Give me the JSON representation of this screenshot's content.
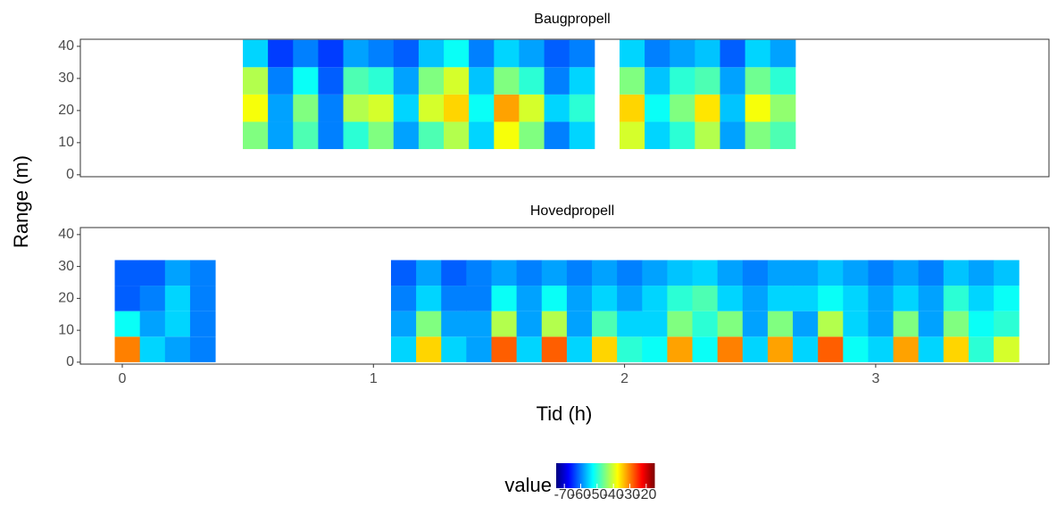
{
  "chart_data": [
    {
      "type": "heatmap",
      "title": "Baugpropell",
      "x": [
        0.53,
        0.63,
        0.73,
        0.83,
        0.93,
        1.03,
        1.13,
        1.23,
        1.33,
        1.43,
        1.53,
        1.63,
        1.73,
        1.83,
        1.93,
        2.03,
        2.13,
        2.23,
        2.33,
        2.43,
        2.53,
        2.63
      ],
      "y": [
        12.25,
        20.75,
        29.25,
        37.75
      ],
      "values": [
        [
          -45,
          -58,
          -48,
          -60,
          -50,
          -45,
          -58,
          -48,
          -42,
          -55,
          -38,
          -45,
          -60,
          -55,
          null,
          -40,
          -55,
          -50,
          -42,
          -58,
          -45,
          -48
        ],
        [
          -38,
          -58,
          -45,
          -60,
          -42,
          -40,
          -55,
          -40,
          -35,
          -52,
          -32,
          -40,
          -55,
          -50,
          null,
          -35,
          -52,
          -45,
          -36,
          -56,
          -38,
          -44
        ],
        [
          -42,
          -60,
          -52,
          -62,
          -48,
          -50,
          -58,
          -45,
          -40,
          -56,
          -45,
          -50,
          -60,
          -55,
          null,
          -45,
          -56,
          -50,
          -48,
          -58,
          -46,
          -50
        ],
        [
          -55,
          -64,
          -60,
          -64,
          -58,
          -60,
          -62,
          -56,
          -52,
          -60,
          -55,
          -58,
          -62,
          -60,
          null,
          -55,
          -60,
          -58,
          -56,
          -62,
          -55,
          -58
        ]
      ],
      "xlim": [
        -0.167,
        3.69
      ],
      "ylim": [
        -0.6,
        42.2
      ],
      "yticks": [
        0,
        10,
        20,
        30,
        40
      ]
    },
    {
      "type": "heatmap",
      "title": "Hovedpropell",
      "x": [
        0.02,
        0.12,
        0.22,
        0.32,
        0.42,
        0.52,
        0.62,
        0.72,
        0.82,
        0.92,
        1.02,
        1.12,
        1.22,
        1.32,
        1.42,
        1.52,
        1.62,
        1.72,
        1.82,
        1.92,
        2.02,
        2.12,
        2.22,
        2.32,
        2.42,
        2.52,
        2.62,
        2.72,
        2.82,
        2.92,
        3.02,
        3.12,
        3.22,
        3.32,
        3.42,
        3.52
      ],
      "y": [
        4,
        12,
        20,
        28
      ],
      "values": [
        [
          -30,
          -55,
          -58,
          -60,
          null,
          null,
          null,
          null,
          null,
          null,
          null,
          -55,
          -35,
          -55,
          -58,
          -28,
          -55,
          -28,
          -55,
          -35,
          -50,
          -52,
          -32,
          -52,
          -30,
          -55,
          -32,
          -55,
          -28,
          -52,
          -55,
          -32,
          -55,
          -35,
          -50,
          -40
        ],
        [
          -52,
          -58,
          -55,
          -60,
          null,
          null,
          null,
          null,
          null,
          null,
          null,
          -58,
          -45,
          -58,
          -58,
          -42,
          -58,
          -42,
          -58,
          -48,
          -55,
          -55,
          -45,
          -50,
          -45,
          -58,
          -45,
          -58,
          -42,
          -55,
          -58,
          -45,
          -58,
          -45,
          -52,
          -50
        ],
        [
          -62,
          -60,
          -55,
          -60,
          null,
          null,
          null,
          null,
          null,
          null,
          null,
          -60,
          -55,
          -60,
          -60,
          -52,
          -58,
          -52,
          -58,
          -55,
          -58,
          -55,
          -50,
          -48,
          -55,
          -58,
          -55,
          -55,
          -52,
          -55,
          -58,
          -55,
          -58,
          -50,
          -55,
          -52
        ],
        [
          -62,
          -62,
          -58,
          -60,
          null,
          null,
          null,
          null,
          null,
          null,
          null,
          -62,
          -58,
          -62,
          -60,
          -58,
          -60,
          -58,
          -60,
          -58,
          -60,
          -58,
          -56,
          -55,
          -58,
          -60,
          -58,
          -58,
          -56,
          -58,
          -60,
          -58,
          -60,
          -56,
          -58,
          -56
        ]
      ],
      "xlim": [
        -0.167,
        3.69
      ],
      "ylim": [
        -0.6,
        42.2
      ],
      "yticks": [
        0,
        10,
        20,
        30,
        40
      ],
      "xticks": [
        0,
        1,
        2,
        3
      ]
    }
  ],
  "x_label": "Tid (h)",
  "y_label": "Range (m)",
  "legend": {
    "title": "value",
    "clim": [
      -75,
      -15
    ],
    "ticks": [
      -70,
      -60,
      -50,
      -40,
      -30,
      -20
    ],
    "colors": [
      "#00007f",
      "#0000ff",
      "#0080ff",
      "#00ffff",
      "#80ff80",
      "#ffff00",
      "#ff8000",
      "#ff0000",
      "#7f0000"
    ]
  }
}
